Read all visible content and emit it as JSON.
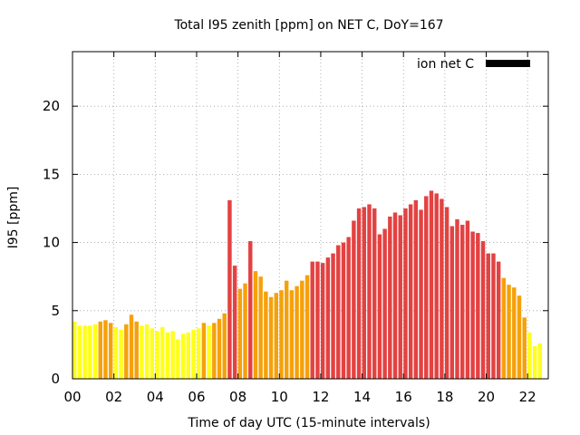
{
  "chart_data": {
    "type": "bar",
    "title": "Total I95 zenith [ppm] on NET C, DoY=167",
    "xlabel": "Time of day UTC (15-minute intervals)",
    "ylabel": "I95 [ppm]",
    "xlim": [
      0,
      23
    ],
    "ylim": [
      0,
      24
    ],
    "x_ticks": [
      "00",
      "02",
      "04",
      "06",
      "08",
      "10",
      "12",
      "14",
      "16",
      "18",
      "20",
      "22"
    ],
    "y_ticks": [
      "0",
      "5",
      "10",
      "15",
      "20"
    ],
    "grid": true,
    "legend": {
      "label": "ion net C",
      "color": "#000000",
      "position": "top-right"
    },
    "colors": {
      "low": "#ffff1a",
      "mid": "#f5a10c",
      "high": "#e34242"
    },
    "values": [
      4.2,
      3.9,
      3.9,
      3.9,
      4.0,
      4.2,
      4.3,
      4.1,
      3.8,
      3.6,
      4.0,
      4.7,
      4.2,
      3.9,
      4.0,
      3.7,
      3.5,
      3.8,
      3.4,
      3.5,
      2.9,
      3.3,
      3.4,
      3.6,
      3.7,
      4.1,
      3.9,
      4.1,
      4.4,
      4.8,
      13.1,
      8.3,
      6.6,
      7.0,
      10.1,
      7.9,
      7.5,
      6.4,
      6.0,
      6.3,
      6.5,
      7.2,
      6.5,
      6.8,
      7.2,
      7.6,
      8.6,
      8.6,
      8.5,
      8.9,
      9.2,
      9.8,
      10.0,
      10.4,
      11.6,
      12.5,
      12.6,
      12.8,
      12.5,
      10.6,
      11.0,
      11.9,
      12.2,
      12.0,
      12.5,
      12.8,
      13.1,
      12.4,
      13.4,
      13.8,
      13.6,
      13.2,
      12.6,
      11.2,
      11.7,
      11.3,
      11.6,
      10.8,
      10.7,
      10.1,
      9.2,
      9.2,
      8.6,
      7.4,
      6.9,
      6.7,
      6.1,
      4.5,
      3.4,
      2.4,
      2.6
    ],
    "levels": [
      "low",
      "low",
      "low",
      "low",
      "low",
      "mid",
      "mid",
      "mid",
      "low",
      "low",
      "mid",
      "mid",
      "mid",
      "low",
      "low",
      "low",
      "low",
      "low",
      "low",
      "low",
      "low",
      "low",
      "low",
      "low",
      "low",
      "mid",
      "low",
      "mid",
      "mid",
      "mid",
      "high",
      "high",
      "mid",
      "mid",
      "high",
      "mid",
      "mid",
      "mid",
      "mid",
      "mid",
      "mid",
      "mid",
      "mid",
      "mid",
      "mid",
      "mid",
      "high",
      "high",
      "high",
      "high",
      "high",
      "high",
      "high",
      "high",
      "high",
      "high",
      "high",
      "high",
      "high",
      "high",
      "high",
      "high",
      "high",
      "high",
      "high",
      "high",
      "high",
      "high",
      "high",
      "high",
      "high",
      "high",
      "high",
      "high",
      "high",
      "high",
      "high",
      "high",
      "high",
      "high",
      "high",
      "high",
      "high",
      "mid",
      "mid",
      "mid",
      "mid",
      "mid",
      "low",
      "low",
      "low"
    ]
  }
}
